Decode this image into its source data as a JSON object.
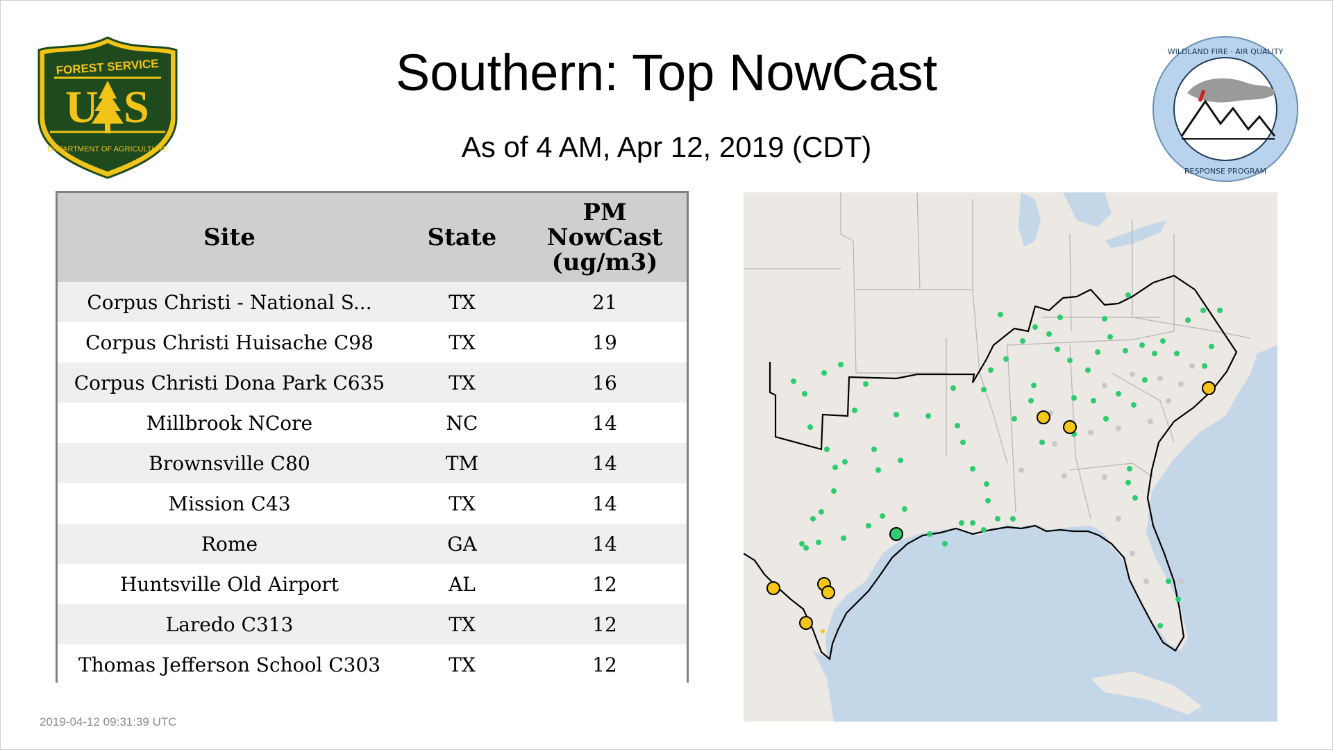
{
  "header": {
    "title": "Southern: Top NowCast",
    "subtitle": "As of  4 AM, Apr 12, 2019 (CDT)"
  },
  "logos": {
    "left": {
      "name": "forest-service-shield",
      "top_text": "FOREST SERVICE",
      "letters": "U S",
      "bottom_text": "DEPARTMENT OF AGRICULTURE",
      "colors": {
        "shield": "#1e4a1e",
        "trim": "#f2c418"
      }
    },
    "right": {
      "name": "wildland-fire-air-quality-seal",
      "top_text": "WILDLAND FIRE · AIR QUALITY",
      "bottom_text": "RESPONSE PROGRAM",
      "colors": {
        "ring": "#b9d3ec",
        "text": "#1a3a5c"
      }
    }
  },
  "table": {
    "columns": [
      "Site",
      "State",
      "PM\nNowCast\n(ug/m3)"
    ],
    "rows": [
      {
        "site": "Corpus Christi - National S...",
        "state": "TX",
        "value": "21"
      },
      {
        "site": "Corpus Christi Huisache C98",
        "state": "TX",
        "value": "19"
      },
      {
        "site": "Corpus Christi Dona Park C635",
        "state": "TX",
        "value": "16"
      },
      {
        "site": "Millbrook NCore",
        "state": "NC",
        "value": "14"
      },
      {
        "site": "Brownsville C80",
        "state": "TM",
        "value": "14"
      },
      {
        "site": "Mission C43",
        "state": "TX",
        "value": "14"
      },
      {
        "site": "Rome",
        "state": "GA",
        "value": "14"
      },
      {
        "site": "Huntsville Old Airport",
        "state": "AL",
        "value": "12"
      },
      {
        "site": "Laredo C313",
        "state": "TX",
        "value": "12"
      },
      {
        "site": "Thomas Jefferson School C303",
        "state": "TX",
        "value": "12"
      }
    ]
  },
  "footer": {
    "timestamp": "2019-04-12 09:31:39 UTC"
  },
  "map": {
    "colors": {
      "land": "#ece8e3",
      "water": "#c4d7e8",
      "good": "#2ecc71",
      "moderate": "#f5c518",
      "no_data": "#c8c8c8",
      "region_outline": "#000000"
    }
  }
}
